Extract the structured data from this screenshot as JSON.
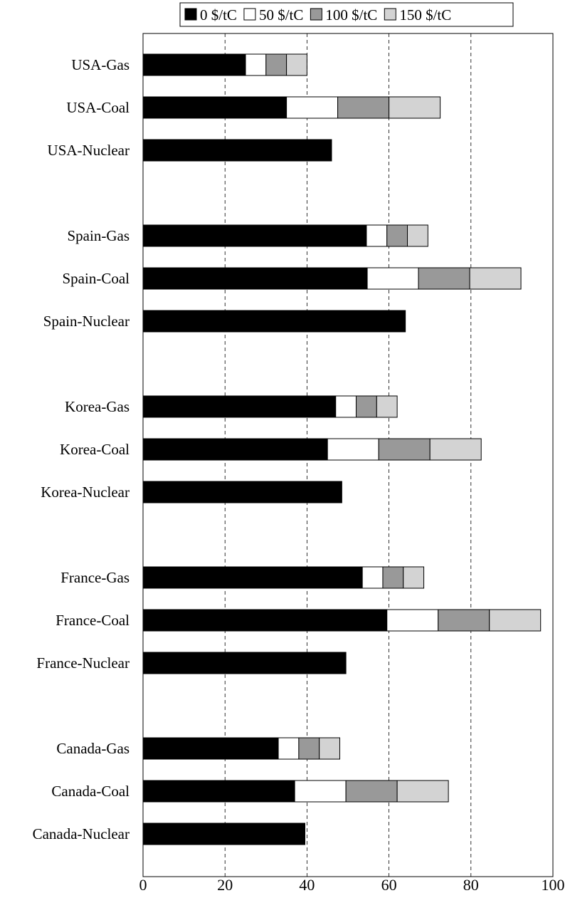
{
  "chart_data": {
    "type": "bar",
    "orientation": "horizontal",
    "stacked": true,
    "categories": [
      "USA-Gas",
      "USA-Coal",
      "USA-Nuclear",
      "Spain-Gas",
      "Spain-Coal",
      "Spain-Nuclear",
      "Korea-Gas",
      "Korea-Coal",
      "Korea-Nuclear",
      "France-Gas",
      "France-Coal",
      "France-Nuclear",
      "Canada-Gas",
      "Canada-Coal",
      "Canada-Nuclear"
    ],
    "group_gaps_after": [
      2,
      5,
      8,
      11
    ],
    "series": [
      {
        "name": "0 $/tC",
        "color": "#000000",
        "values": [
          25,
          35,
          46,
          54.5,
          54.7,
          64,
          47,
          45,
          48.5,
          53.5,
          59.5,
          49.5,
          33,
          37,
          39.5
        ]
      },
      {
        "name": "50 $/tC",
        "color": "#ffffff",
        "values": [
          5,
          12.5,
          0,
          5,
          12.5,
          0,
          5,
          12.5,
          0,
          5,
          12.5,
          0,
          5,
          12.5,
          0
        ]
      },
      {
        "name": "100 $/tC",
        "color": "#999999",
        "values": [
          5,
          12.5,
          0,
          5,
          12.5,
          0,
          5,
          12.5,
          0,
          5,
          12.5,
          0,
          5,
          12.5,
          0
        ]
      },
      {
        "name": "150 $/tC",
        "color": "#d3d3d3",
        "values": [
          5,
          12.5,
          0,
          5,
          12.5,
          0,
          5,
          12.5,
          0,
          5,
          12.5,
          0,
          5,
          12.5,
          0
        ]
      }
    ],
    "xlim": [
      0,
      100
    ],
    "xticks": [
      "0",
      "20",
      "40",
      "60",
      "80",
      "100"
    ],
    "grid": "vertical dashed",
    "legend": "top",
    "title": "",
    "xlabel": "",
    "ylabel": ""
  }
}
